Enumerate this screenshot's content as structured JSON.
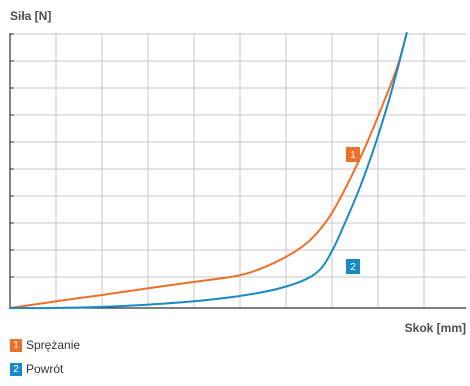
{
  "chart_data": {
    "type": "line",
    "ylabel": "Siła [N]",
    "xlabel": "Skok [mm]",
    "grid": true,
    "xlim": [
      0,
      100
    ],
    "ylim": [
      0,
      100
    ],
    "series": [
      {
        "name": "Sprężanie",
        "marker": "1",
        "color": "#ee6f2a",
        "x": [
          0,
          10,
          20,
          30,
          40,
          50,
          56,
          62,
          66,
          70,
          74,
          78,
          82,
          85,
          87
        ],
        "y": [
          0,
          2.4,
          4.7,
          7.1,
          9.4,
          11.8,
          15,
          20,
          25,
          33,
          45,
          59,
          75,
          88,
          100
        ]
      },
      {
        "name": "Powrót",
        "marker": "2",
        "color": "#1a8ac7",
        "x": [
          0,
          10,
          20,
          30,
          40,
          50,
          58,
          64,
          68,
          71,
          74,
          77,
          80,
          83,
          85,
          87
        ],
        "y": [
          0,
          0,
          0.4,
          1.2,
          2.4,
          4.3,
          6.7,
          9.8,
          14,
          22,
          33,
          45,
          59,
          75,
          87,
          100
        ]
      }
    ]
  }
}
